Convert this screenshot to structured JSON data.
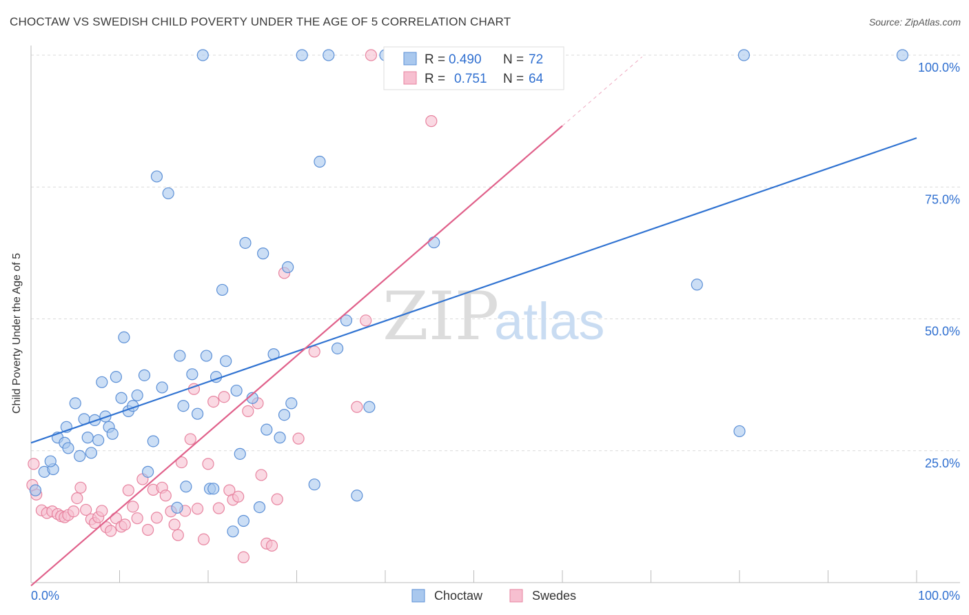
{
  "header": {
    "title": "CHOCTAW VS SWEDISH CHILD POVERTY UNDER THE AGE OF 5 CORRELATION CHART",
    "source": "Source: ZipAtlas.com"
  },
  "watermark": {
    "zip": "ZIP",
    "atlas": "atlas"
  },
  "colors": {
    "choctaw_fill": "#a9c8ee",
    "choctaw_stroke": "#5b8fd6",
    "choctaw_line": "#2f72d1",
    "swedes_fill": "#f7bfd0",
    "swedes_stroke": "#e7839f",
    "swedes_line": "#e0608a",
    "value_text": "#2f6fd0",
    "grid": "#d9d9d9"
  },
  "legend": {
    "rows": [
      {
        "r_label": "R =",
        "r_value": "0.490",
        "n_label": "N =",
        "n_value": "72"
      },
      {
        "r_label": "R =",
        "r_value": "0.751",
        "n_label": "N =",
        "n_value": "64"
      }
    ]
  },
  "bottom_legend": {
    "series1": "Choctaw",
    "series2": "Swedes"
  },
  "chart_data": {
    "type": "scatter",
    "xlabel": "",
    "ylabel": "Child Poverty Under the Age of 5",
    "xlim": [
      0,
      100
    ],
    "ylim": [
      0,
      100
    ],
    "x_tick_labels": [
      "0.0%",
      "100.0%"
    ],
    "y_tick_labels": [
      "25.0%",
      "50.0%",
      "75.0%",
      "100.0%"
    ],
    "grid": true,
    "legend_placement": "top-center",
    "series": [
      {
        "name": "Choctaw",
        "r": 0.49,
        "n": 72,
        "trend": {
          "x0": 0,
          "y0": 26.5,
          "x1": 100,
          "y1": 84.3
        },
        "points": [
          [
            0.5,
            17.5
          ],
          [
            1.5,
            21
          ],
          [
            2.5,
            21.5
          ],
          [
            2.2,
            23
          ],
          [
            3,
            27.5
          ],
          [
            4,
            29.5
          ],
          [
            3.8,
            26.5
          ],
          [
            4.2,
            25.5
          ],
          [
            5,
            34
          ],
          [
            5.5,
            24
          ],
          [
            6,
            31
          ],
          [
            6.4,
            27.5
          ],
          [
            6.8,
            24.6
          ],
          [
            7.2,
            30.8
          ],
          [
            7.6,
            27
          ],
          [
            8,
            38
          ],
          [
            8.4,
            31.5
          ],
          [
            8.8,
            29.5
          ],
          [
            9.2,
            28.2
          ],
          [
            9.6,
            39
          ],
          [
            10.2,
            35
          ],
          [
            10.5,
            46.5
          ],
          [
            11,
            32.5
          ],
          [
            11.5,
            33.5
          ],
          [
            12,
            35.5
          ],
          [
            12.8,
            39.3
          ],
          [
            13.2,
            21
          ],
          [
            13.8,
            26.8
          ],
          [
            14.2,
            77
          ],
          [
            14.8,
            37
          ],
          [
            15.5,
            73.8
          ],
          [
            16.5,
            14.2
          ],
          [
            16.8,
            43
          ],
          [
            17.2,
            33.5
          ],
          [
            17.5,
            18.2
          ],
          [
            18.2,
            39.5
          ],
          [
            18.8,
            32
          ],
          [
            19.4,
            100
          ],
          [
            19.8,
            43
          ],
          [
            20.2,
            17.8
          ],
          [
            20.6,
            17.8
          ],
          [
            20.9,
            39
          ],
          [
            21.6,
            55.5
          ],
          [
            22,
            42
          ],
          [
            22.8,
            9.7
          ],
          [
            23.2,
            36.4
          ],
          [
            23.6,
            24.4
          ],
          [
            24,
            11.7
          ],
          [
            24.2,
            64.4
          ],
          [
            25,
            35
          ],
          [
            25.8,
            14.3
          ],
          [
            26.2,
            62.4
          ],
          [
            26.6,
            29
          ],
          [
            27.4,
            43.3
          ],
          [
            28.1,
            27.5
          ],
          [
            28.6,
            31.8
          ],
          [
            29,
            59.8
          ],
          [
            29.4,
            34
          ],
          [
            30.6,
            100
          ],
          [
            32,
            18.6
          ],
          [
            32.6,
            79.8
          ],
          [
            33.6,
            100
          ],
          [
            34.6,
            44.4
          ],
          [
            35.6,
            49.7
          ],
          [
            36.8,
            16.5
          ],
          [
            38.2,
            33.3
          ],
          [
            40,
            100
          ],
          [
            45.5,
            64.5
          ],
          [
            75.2,
            56.5
          ],
          [
            80,
            28.7
          ],
          [
            80.5,
            100
          ],
          [
            98.4,
            100
          ]
        ]
      },
      {
        "name": "Swedes",
        "r": 0.751,
        "n": 64,
        "trend": {
          "x0": 0,
          "y0": -0.6,
          "x1": 60,
          "y1": 86.6
        },
        "points": [
          [
            0.3,
            22.5
          ],
          [
            0.6,
            16.7
          ],
          [
            1.2,
            13.7
          ],
          [
            1.8,
            13.2
          ],
          [
            2.4,
            13.5
          ],
          [
            3,
            13
          ],
          [
            3.4,
            12.6
          ],
          [
            3.8,
            12.4
          ],
          [
            4.2,
            12.8
          ],
          [
            4.8,
            13.5
          ],
          [
            5.2,
            16
          ],
          [
            5.6,
            18
          ],
          [
            6.2,
            13.8
          ],
          [
            6.8,
            12
          ],
          [
            7.2,
            11.3
          ],
          [
            7.6,
            12.4
          ],
          [
            8,
            13.6
          ],
          [
            8.5,
            10.5
          ],
          [
            9,
            9.8
          ],
          [
            9.6,
            12.2
          ],
          [
            10.2,
            10.6
          ],
          [
            10.6,
            11
          ],
          [
            11,
            17.5
          ],
          [
            11.5,
            14.4
          ],
          [
            12,
            12.2
          ],
          [
            12.6,
            19.6
          ],
          [
            13.2,
            10
          ],
          [
            13.8,
            17.6
          ],
          [
            14.2,
            12.3
          ],
          [
            14.8,
            18
          ],
          [
            15.2,
            16.5
          ],
          [
            15.8,
            13.5
          ],
          [
            16.2,
            11
          ],
          [
            16.6,
            9
          ],
          [
            17,
            22.8
          ],
          [
            17.4,
            13.6
          ],
          [
            18,
            27.2
          ],
          [
            18.4,
            36.7
          ],
          [
            18.8,
            14
          ],
          [
            19.5,
            8.2
          ],
          [
            20,
            22.5
          ],
          [
            20.6,
            34.3
          ],
          [
            21.2,
            14.1
          ],
          [
            21.8,
            35.2
          ],
          [
            22.4,
            17.5
          ],
          [
            22.8,
            15.7
          ],
          [
            23.4,
            16.3
          ],
          [
            24,
            4.8
          ],
          [
            24.5,
            32.5
          ],
          [
            25.6,
            34
          ],
          [
            26,
            20.4
          ],
          [
            26.6,
            7.4
          ],
          [
            27.2,
            7
          ],
          [
            27.8,
            15.8
          ],
          [
            28.6,
            58.7
          ],
          [
            30.2,
            27.3
          ],
          [
            32,
            43.8
          ],
          [
            36.8,
            33.3
          ],
          [
            37.8,
            49.7
          ],
          [
            38.4,
            100
          ],
          [
            40.6,
            100
          ],
          [
            45.2,
            87.5
          ],
          [
            54.8,
            100
          ],
          [
            0.15,
            18.5
          ]
        ]
      }
    ]
  }
}
